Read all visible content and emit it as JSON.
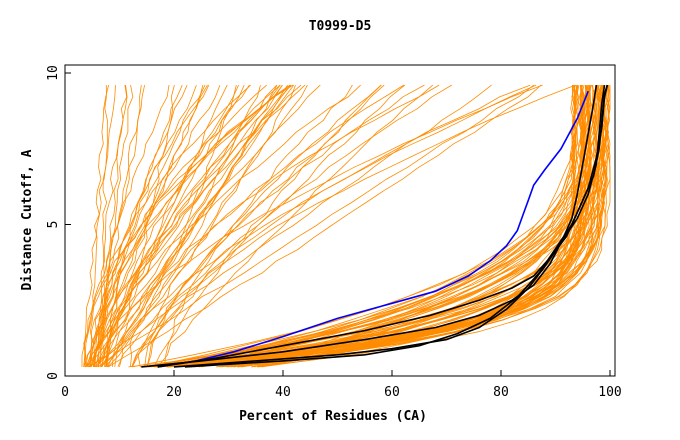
{
  "chart_data": {
    "type": "line",
    "title": "T0999-D5",
    "xlabel": "Percent of Residues (CA)",
    "ylabel": "Distance Cutoff, A",
    "xlim": [
      0,
      100
    ],
    "ylim": [
      0,
      10
    ],
    "x_ticks": [
      "0",
      "20",
      "40",
      "60",
      "80",
      "100"
    ],
    "y_ticks": [
      "0",
      "5",
      "10"
    ],
    "grid": false,
    "legend": "none",
    "colors": {
      "orange": "#ff8c00",
      "black": "#000000",
      "blue": "#0000ff"
    },
    "highlight_series": [
      {
        "color": "blue",
        "points": [
          [
            17,
            0.3
          ],
          [
            24,
            0.5
          ],
          [
            31,
            0.8
          ],
          [
            40,
            1.3
          ],
          [
            50,
            1.9
          ],
          [
            60,
            2.4
          ],
          [
            68,
            2.8
          ],
          [
            74,
            3.3
          ],
          [
            78,
            3.8
          ],
          [
            81,
            4.3
          ],
          [
            83,
            4.8
          ],
          [
            84,
            5.3
          ],
          [
            85,
            5.8
          ],
          [
            86,
            6.3
          ],
          [
            88,
            6.8
          ],
          [
            91,
            7.5
          ],
          [
            94,
            8.5
          ],
          [
            96,
            9.4
          ]
        ]
      },
      {
        "color": "black",
        "points": [
          [
            14,
            0.3
          ],
          [
            25,
            0.5
          ],
          [
            40,
            0.8
          ],
          [
            55,
            1.2
          ],
          [
            68,
            1.6
          ],
          [
            76,
            2.0
          ],
          [
            82,
            2.5
          ],
          [
            86,
            3.0
          ],
          [
            89,
            3.7
          ],
          [
            91,
            4.4
          ],
          [
            93,
            5.2
          ],
          [
            94,
            6.0
          ],
          [
            95,
            7.0
          ],
          [
            96,
            8.0
          ],
          [
            97,
            9.0
          ],
          [
            97.5,
            9.6
          ]
        ]
      },
      {
        "color": "black",
        "points": [
          [
            20,
            0.3
          ],
          [
            35,
            0.5
          ],
          [
            50,
            0.7
          ],
          [
            60,
            0.9
          ],
          [
            70,
            1.2
          ],
          [
            76,
            1.6
          ],
          [
            81,
            2.2
          ],
          [
            85,
            2.9
          ],
          [
            88,
            3.6
          ],
          [
            91,
            4.4
          ],
          [
            94,
            5.2
          ],
          [
            96,
            6.0
          ],
          [
            97.5,
            7.0
          ],
          [
            98,
            8.0
          ],
          [
            98.5,
            9.0
          ],
          [
            99,
            9.6
          ]
        ]
      },
      {
        "color": "black",
        "points": [
          [
            22,
            0.3
          ],
          [
            40,
            0.5
          ],
          [
            55,
            0.7
          ],
          [
            65,
            1.0
          ],
          [
            72,
            1.4
          ],
          [
            78,
            1.9
          ],
          [
            83,
            2.6
          ],
          [
            87,
            3.4
          ],
          [
            90,
            4.2
          ],
          [
            93,
            5.0
          ],
          [
            95,
            5.8
          ],
          [
            97,
            6.6
          ],
          [
            98,
            7.5
          ],
          [
            98.5,
            8.4
          ],
          [
            99,
            9.3
          ],
          [
            99.5,
            9.6
          ]
        ]
      },
      {
        "color": "black",
        "points": [
          [
            17,
            0.3
          ],
          [
            28,
            0.6
          ],
          [
            40,
            1.0
          ],
          [
            55,
            1.5
          ],
          [
            67,
            2.0
          ],
          [
            76,
            2.5
          ],
          [
            82,
            2.9
          ],
          [
            86,
            3.3
          ],
          [
            89,
            3.9
          ],
          [
            92,
            4.6
          ],
          [
            94,
            5.4
          ],
          [
            96,
            6.2
          ],
          [
            97.5,
            7.2
          ],
          [
            98.5,
            8.2
          ],
          [
            99,
            9.2
          ],
          [
            99.5,
            9.6
          ]
        ]
      }
    ]
  }
}
